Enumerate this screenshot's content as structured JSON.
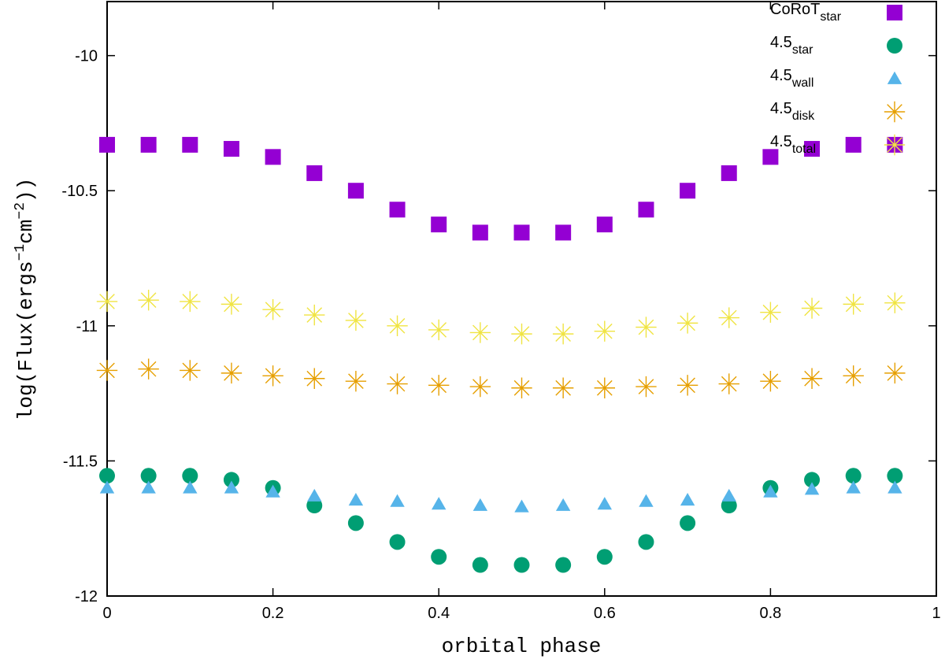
{
  "chart_data": {
    "type": "scatter",
    "xlabel": "orbital phase",
    "ylabel": {
      "prefix": "log(Flux(ergs",
      "exp1": "−1",
      "middle": "cm",
      "exp2": "−2",
      "suffix": "))"
    },
    "xlim": [
      0,
      1
    ],
    "ylim": [
      -12,
      -9.8
    ],
    "xticks": [
      0,
      0.2,
      0.4,
      0.6,
      0.8,
      1
    ],
    "xtick_labels": [
      "0",
      "0.2",
      "0.4",
      "0.6",
      "0.8",
      "1"
    ],
    "yticks": [
      -12,
      -11.5,
      -11,
      -10.5,
      -10
    ],
    "ytick_labels": [
      "-12",
      "-11.5",
      "-11",
      "-10.5",
      "-10"
    ],
    "grid": false,
    "legend_position": "top-right",
    "x": [
      0,
      0.05,
      0.1,
      0.15,
      0.2,
      0.25,
      0.3,
      0.35,
      0.4,
      0.45,
      0.5,
      0.55,
      0.6,
      0.65,
      0.7,
      0.75,
      0.8,
      0.85,
      0.9,
      0.95
    ],
    "series": [
      {
        "name": "CoRoT_star",
        "label_main": "CoRoT",
        "label_sub": "star",
        "marker": "square",
        "color": "#9400d3",
        "values": [
          -10.33,
          -10.33,
          -10.33,
          -10.345,
          -10.375,
          -10.435,
          -10.5,
          -10.57,
          -10.625,
          -10.655,
          -10.655,
          -10.655,
          -10.625,
          -10.57,
          -10.5,
          -10.435,
          -10.375,
          -10.345,
          -10.33,
          -10.33
        ]
      },
      {
        "name": "4.5_star",
        "label_main": "4.5",
        "label_sub": "star",
        "marker": "circle",
        "color": "#009e73",
        "values": [
          -11.555,
          -11.555,
          -11.555,
          -11.57,
          -11.6,
          -11.665,
          -11.73,
          -11.8,
          -11.855,
          -11.885,
          -11.885,
          -11.885,
          -11.855,
          -11.8,
          -11.73,
          -11.665,
          -11.6,
          -11.57,
          -11.555,
          -11.555
        ]
      },
      {
        "name": "4.5_wall",
        "label_main": "4.5",
        "label_sub": "wall",
        "marker": "triangle",
        "color": "#56b4e9",
        "values": [
          -11.6,
          -11.6,
          -11.6,
          -11.6,
          -11.615,
          -11.63,
          -11.645,
          -11.65,
          -11.66,
          -11.665,
          -11.67,
          -11.665,
          -11.66,
          -11.65,
          -11.645,
          -11.63,
          -11.615,
          -11.605,
          -11.6,
          -11.6
        ]
      },
      {
        "name": "4.5_disk",
        "label_main": "4.5",
        "label_sub": "disk",
        "marker": "star",
        "color": "#e69f00",
        "values": [
          -11.165,
          -11.16,
          -11.165,
          -11.175,
          -11.185,
          -11.195,
          -11.205,
          -11.215,
          -11.22,
          -11.225,
          -11.23,
          -11.23,
          -11.23,
          -11.225,
          -11.22,
          -11.215,
          -11.205,
          -11.195,
          -11.185,
          -11.175
        ]
      },
      {
        "name": "4.5_total",
        "label_main": "4.5",
        "label_sub": "total",
        "marker": "star",
        "color": "#f0e442",
        "values": [
          -10.91,
          -10.905,
          -10.91,
          -10.92,
          -10.94,
          -10.96,
          -10.98,
          -11.0,
          -11.015,
          -11.025,
          -11.03,
          -11.03,
          -11.02,
          -11.005,
          -10.99,
          -10.97,
          -10.95,
          -10.935,
          -10.92,
          -10.915
        ]
      }
    ]
  }
}
